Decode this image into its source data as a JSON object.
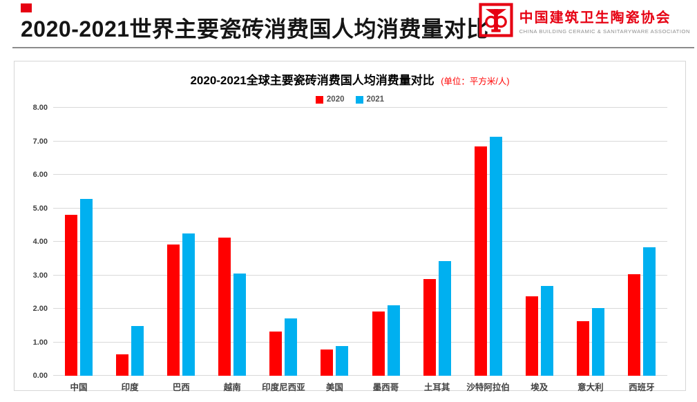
{
  "header": {
    "title": "2020-2021世界主要瓷砖消费国人均消费量对比",
    "logo": {
      "org_cn": "中国建筑卫生陶瓷协会",
      "org_en": "CHINA BUILDING CERAMIC & SANITARYWARE ASSOCIATION"
    }
  },
  "chart": {
    "unit_text": "(单位：平方米/人)"
  },
  "chart_data": {
    "type": "bar",
    "title": "2020-2021全球主要瓷砖消费国人均消费量对比",
    "unit_label": "单位：平方米/人",
    "categories": [
      "中国",
      "印度",
      "巴西",
      "越南",
      "印度尼西亚",
      "美国",
      "墨西哥",
      "土耳其",
      "沙特阿拉伯",
      "埃及",
      "意大利",
      "西班牙"
    ],
    "series": [
      {
        "name": "2020",
        "color": "#ff0000",
        "values": [
          4.8,
          0.64,
          3.91,
          4.12,
          1.31,
          0.79,
          1.91,
          2.88,
          6.85,
          2.38,
          1.63,
          3.03
        ]
      },
      {
        "name": "2021",
        "color": "#00b0f0",
        "values": [
          5.27,
          1.48,
          4.24,
          3.06,
          1.72,
          0.88,
          2.1,
          3.43,
          7.13,
          2.68,
          2.02,
          3.84
        ]
      }
    ],
    "ylim": [
      0,
      8
    ],
    "ytick_step": 1,
    "grid": true,
    "legend_position": "top"
  },
  "colors": {
    "accent_red": "#e60012",
    "bar_2020": "#ff0000",
    "bar_2021": "#00b0f0",
    "gridline": "#d9d9d9"
  }
}
